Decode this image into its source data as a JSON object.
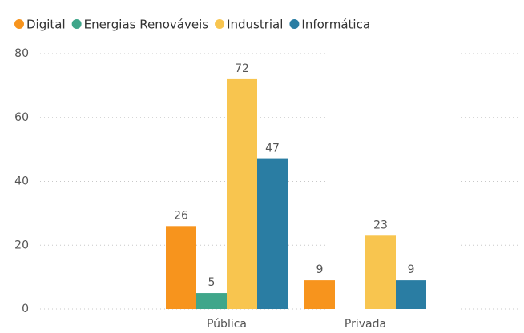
{
  "chart_data": {
    "type": "bar",
    "categories": [
      "Pública",
      "Privada"
    ],
    "series": [
      {
        "name": "Digital",
        "color": "#f7941d",
        "values": [
          26,
          9
        ]
      },
      {
        "name": "Energias Renováveis",
        "color": "#3fa68a",
        "values": [
          5,
          null
        ]
      },
      {
        "name": "Industrial",
        "color": "#f8c54f",
        "values": [
          72,
          23
        ]
      },
      {
        "name": "Informática",
        "color": "#2a7da3",
        "values": [
          47,
          9
        ]
      }
    ],
    "ylim": [
      0,
      80
    ],
    "yticks": [
      0,
      20,
      40,
      60,
      80
    ],
    "grid": true,
    "legend": "top-left"
  }
}
